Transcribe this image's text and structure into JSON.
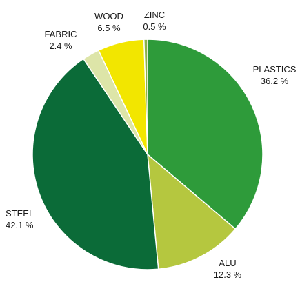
{
  "chart_data": {
    "type": "pie",
    "start": "top",
    "direction": "clockwise",
    "slices": [
      {
        "label": "PLASTICS",
        "value": 36.2,
        "value_text": "36.2 %",
        "color": "#2e9b3a"
      },
      {
        "label": "ALU",
        "value": 12.3,
        "value_text": "12.3 %",
        "color": "#b5c73f"
      },
      {
        "label": "STEEL",
        "value": 42.1,
        "value_text": "42.1 %",
        "color": "#0b6b38"
      },
      {
        "label": "FABRIC",
        "value": 2.4,
        "value_text": "2.4 %",
        "color": "#dde5a8"
      },
      {
        "label": "WOOD",
        "value": 6.5,
        "value_text": "6.5 %",
        "color": "#f2e600"
      },
      {
        "label": "ZINC",
        "value": 0.5,
        "value_text": "0.5 %",
        "color": "#8ab24a"
      }
    ]
  }
}
